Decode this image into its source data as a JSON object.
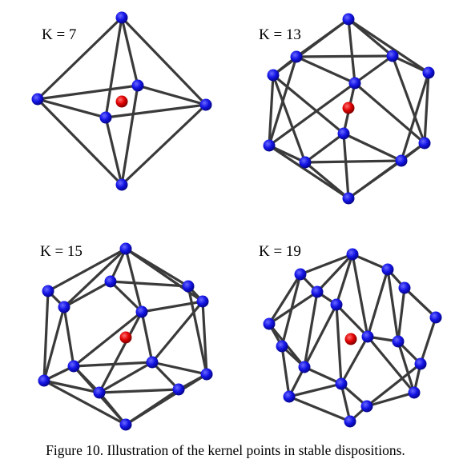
{
  "colors": {
    "edge": "#3a3a3a",
    "kernel_point": "#1414e6",
    "center_point": "#e00000"
  },
  "panels": [
    {
      "label": "K = 7"
    },
    {
      "label": "K = 13"
    },
    {
      "label": "K = 15"
    },
    {
      "label": "K = 19"
    }
  ],
  "caption": "Figure 10. Illustration of the kernel points in stable dispositions."
}
